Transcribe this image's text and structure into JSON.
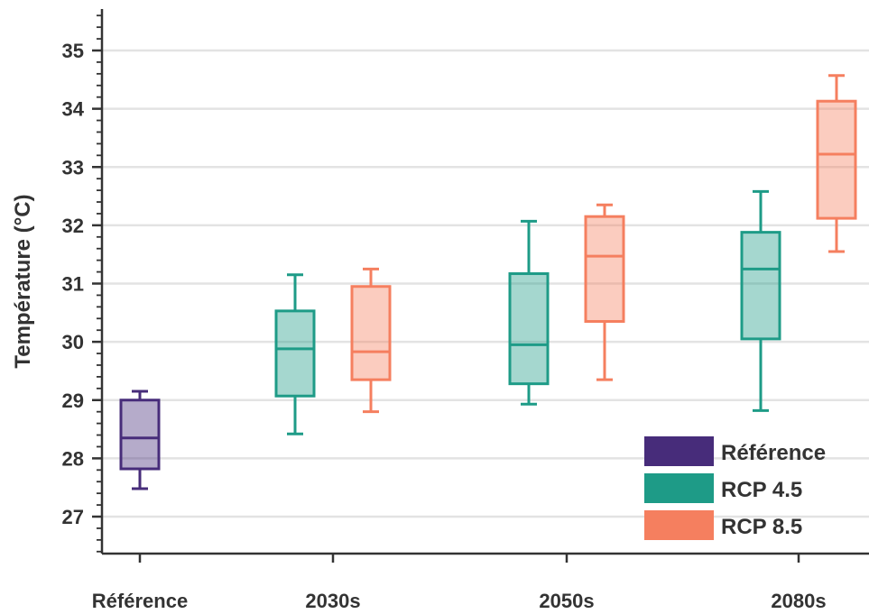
{
  "chart_data": {
    "type": "box",
    "ylabel": "Température (°C)",
    "xlabel": "",
    "ylim": [
      26.4,
      35.8
    ],
    "yticks": [
      27,
      28,
      29,
      30,
      31,
      32,
      33,
      34,
      35
    ],
    "grid": "horizontal",
    "legend_position": "bottom-right",
    "groups": [
      "Référence",
      "2030s",
      "2050s",
      "2080s"
    ],
    "series": [
      {
        "name": "Référence",
        "color": "#472c7a",
        "boxes": [
          {
            "group": "Référence",
            "whisker_low": 27.48,
            "q1": 27.82,
            "median": 28.35,
            "q3": 29.0,
            "whisker_high": 29.15
          }
        ]
      },
      {
        "name": "RCP 4.5",
        "color": "#1e9b87",
        "boxes": [
          {
            "group": "2030s",
            "whisker_low": 28.42,
            "q1": 29.07,
            "median": 29.88,
            "q3": 30.53,
            "whisker_high": 31.15
          },
          {
            "group": "2050s",
            "whisker_low": 28.93,
            "q1": 29.28,
            "median": 29.95,
            "q3": 31.17,
            "whisker_high": 32.07
          },
          {
            "group": "2080s",
            "whisker_low": 28.82,
            "q1": 30.05,
            "median": 31.25,
            "q3": 31.88,
            "whisker_high": 32.58
          }
        ]
      },
      {
        "name": "RCP 8.5",
        "color": "#f57f5f",
        "boxes": [
          {
            "group": "2030s",
            "whisker_low": 28.8,
            "q1": 29.35,
            "median": 29.83,
            "q3": 30.95,
            "whisker_high": 31.25
          },
          {
            "group": "2050s",
            "whisker_low": 29.35,
            "q1": 30.35,
            "median": 31.47,
            "q3": 32.15,
            "whisker_high": 32.35
          },
          {
            "group": "2080s",
            "whisker_low": 31.55,
            "q1": 32.12,
            "median": 33.22,
            "q3": 34.13,
            "whisker_high": 34.57
          }
        ]
      }
    ]
  }
}
